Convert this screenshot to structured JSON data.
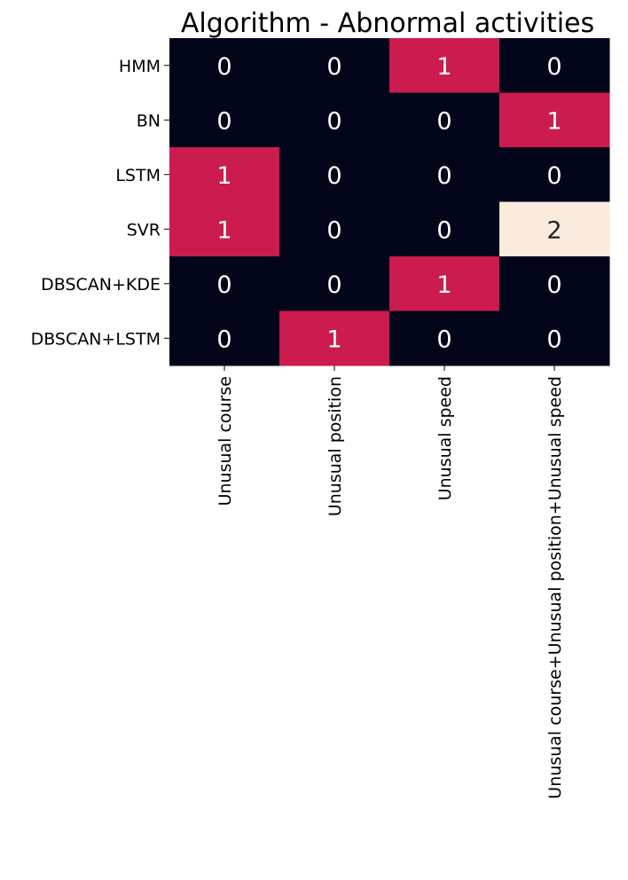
{
  "chart_data": {
    "type": "heatmap",
    "title": "Algorithm - Abnormal activities",
    "xlabel": "",
    "ylabel": "",
    "rows": [
      "HMM",
      "BN",
      "LSTM",
      "SVR",
      "DBSCAN+KDE",
      "DBSCAN+LSTM"
    ],
    "columns": [
      "Unusual course",
      "Unusual position",
      "Unusual speed",
      "Unusual course+Unusual position+Unusual speed"
    ],
    "values": [
      [
        0,
        0,
        1,
        0
      ],
      [
        0,
        0,
        0,
        1
      ],
      [
        1,
        0,
        0,
        0
      ],
      [
        1,
        0,
        0,
        2
      ],
      [
        0,
        0,
        1,
        0
      ],
      [
        0,
        1,
        0,
        0
      ]
    ],
    "annotations": true,
    "colorbar": false,
    "grid": false,
    "colors": {
      "0": "#03051a",
      "1": "#cb1b4f",
      "2": "#faebdd"
    },
    "annotation_colors": {
      "dark_bg": "#ffffff",
      "light_bg": "#262626"
    }
  }
}
